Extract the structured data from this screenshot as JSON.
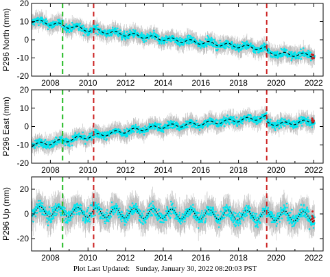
{
  "footer": {
    "label": "Plot Last Updated:",
    "timestamp": "Sunday, January 30, 2022 08:20:03 PST"
  },
  "chart_data": [
    {
      "type": "scatter",
      "ylabel": "P296 North (mm)",
      "xlim": [
        2007.0,
        2022.5
      ],
      "ylim": [
        -20,
        20
      ],
      "yticks": [
        -20,
        -10,
        0,
        10,
        20
      ],
      "xticks": [
        2008,
        2010,
        2012,
        2014,
        2016,
        2018,
        2020,
        2022
      ],
      "vlines": [
        {
          "x": 2008.65,
          "color": "#22bb22"
        },
        {
          "x": 2010.3,
          "color": "#cc2222"
        },
        {
          "x": 2019.5,
          "color": "#cc2222"
        }
      ],
      "trend": [
        [
          2007.0,
          10.5
        ],
        [
          2008.0,
          9.0
        ],
        [
          2010.0,
          5.5
        ],
        [
          2012.0,
          3.0
        ],
        [
          2014.0,
          0.5
        ],
        [
          2016.0,
          -1.5
        ],
        [
          2018.0,
          -3.5
        ],
        [
          2019.5,
          -5.0
        ],
        [
          2019.55,
          -7.0
        ],
        [
          2020.5,
          -8.0
        ],
        [
          2022.0,
          -8.5
        ]
      ],
      "seasonal_amplitude": 1.0,
      "scatter_sd": 2.0,
      "errorbar_half": 3.5,
      "colors": {
        "points": "#00e5ee",
        "errors": "#a8a8a8",
        "trend": "#000000",
        "recent": "#cc2222"
      }
    },
    {
      "type": "scatter",
      "ylabel": "P296 East (mm)",
      "xlim": [
        2007.0,
        2022.5
      ],
      "ylim": [
        -20,
        20
      ],
      "yticks": [
        -20,
        -10,
        0,
        10,
        20
      ],
      "xticks": [
        2008,
        2010,
        2012,
        2014,
        2016,
        2018,
        2020,
        2022
      ],
      "vlines": [
        {
          "x": 2008.65,
          "color": "#22bb22"
        },
        {
          "x": 2010.3,
          "color": "#cc2222"
        },
        {
          "x": 2019.5,
          "color": "#cc2222"
        }
      ],
      "trend": [
        [
          2007.0,
          -10.0
        ],
        [
          2008.0,
          -9.0
        ],
        [
          2010.0,
          -5.5
        ],
        [
          2012.0,
          -2.5
        ],
        [
          2014.0,
          0.0
        ],
        [
          2016.0,
          1.5
        ],
        [
          2018.0,
          3.5
        ],
        [
          2019.5,
          5.0
        ],
        [
          2019.55,
          1.5
        ],
        [
          2020.5,
          1.5
        ],
        [
          2022.0,
          3.0
        ]
      ],
      "seasonal_amplitude": 1.0,
      "scatter_sd": 2.0,
      "errorbar_half": 3.5,
      "colors": {
        "points": "#00e5ee",
        "errors": "#a8a8a8",
        "trend": "#000000",
        "recent": "#cc2222"
      }
    },
    {
      "type": "scatter",
      "ylabel": "P296 Up (mm)",
      "xlim": [
        2007.0,
        2022.5
      ],
      "ylim": [
        -30,
        30
      ],
      "yticks": [
        -20,
        0,
        20
      ],
      "xticks": [
        2008,
        2010,
        2012,
        2014,
        2016,
        2018,
        2020,
        2022
      ],
      "vlines": [
        {
          "x": 2008.65,
          "color": "#22bb22"
        },
        {
          "x": 2010.3,
          "color": "#cc2222"
        },
        {
          "x": 2019.5,
          "color": "#cc2222"
        }
      ],
      "trend": [
        [
          2007.0,
          2.0
        ],
        [
          2022.0,
          -2.0
        ]
      ],
      "seasonal_amplitude": 4.0,
      "scatter_sd": 5.0,
      "errorbar_half": 9.0,
      "colors": {
        "points": "#00e5ee",
        "errors": "#a8a8a8",
        "trend": "#000000",
        "recent": "#cc2222"
      }
    }
  ]
}
